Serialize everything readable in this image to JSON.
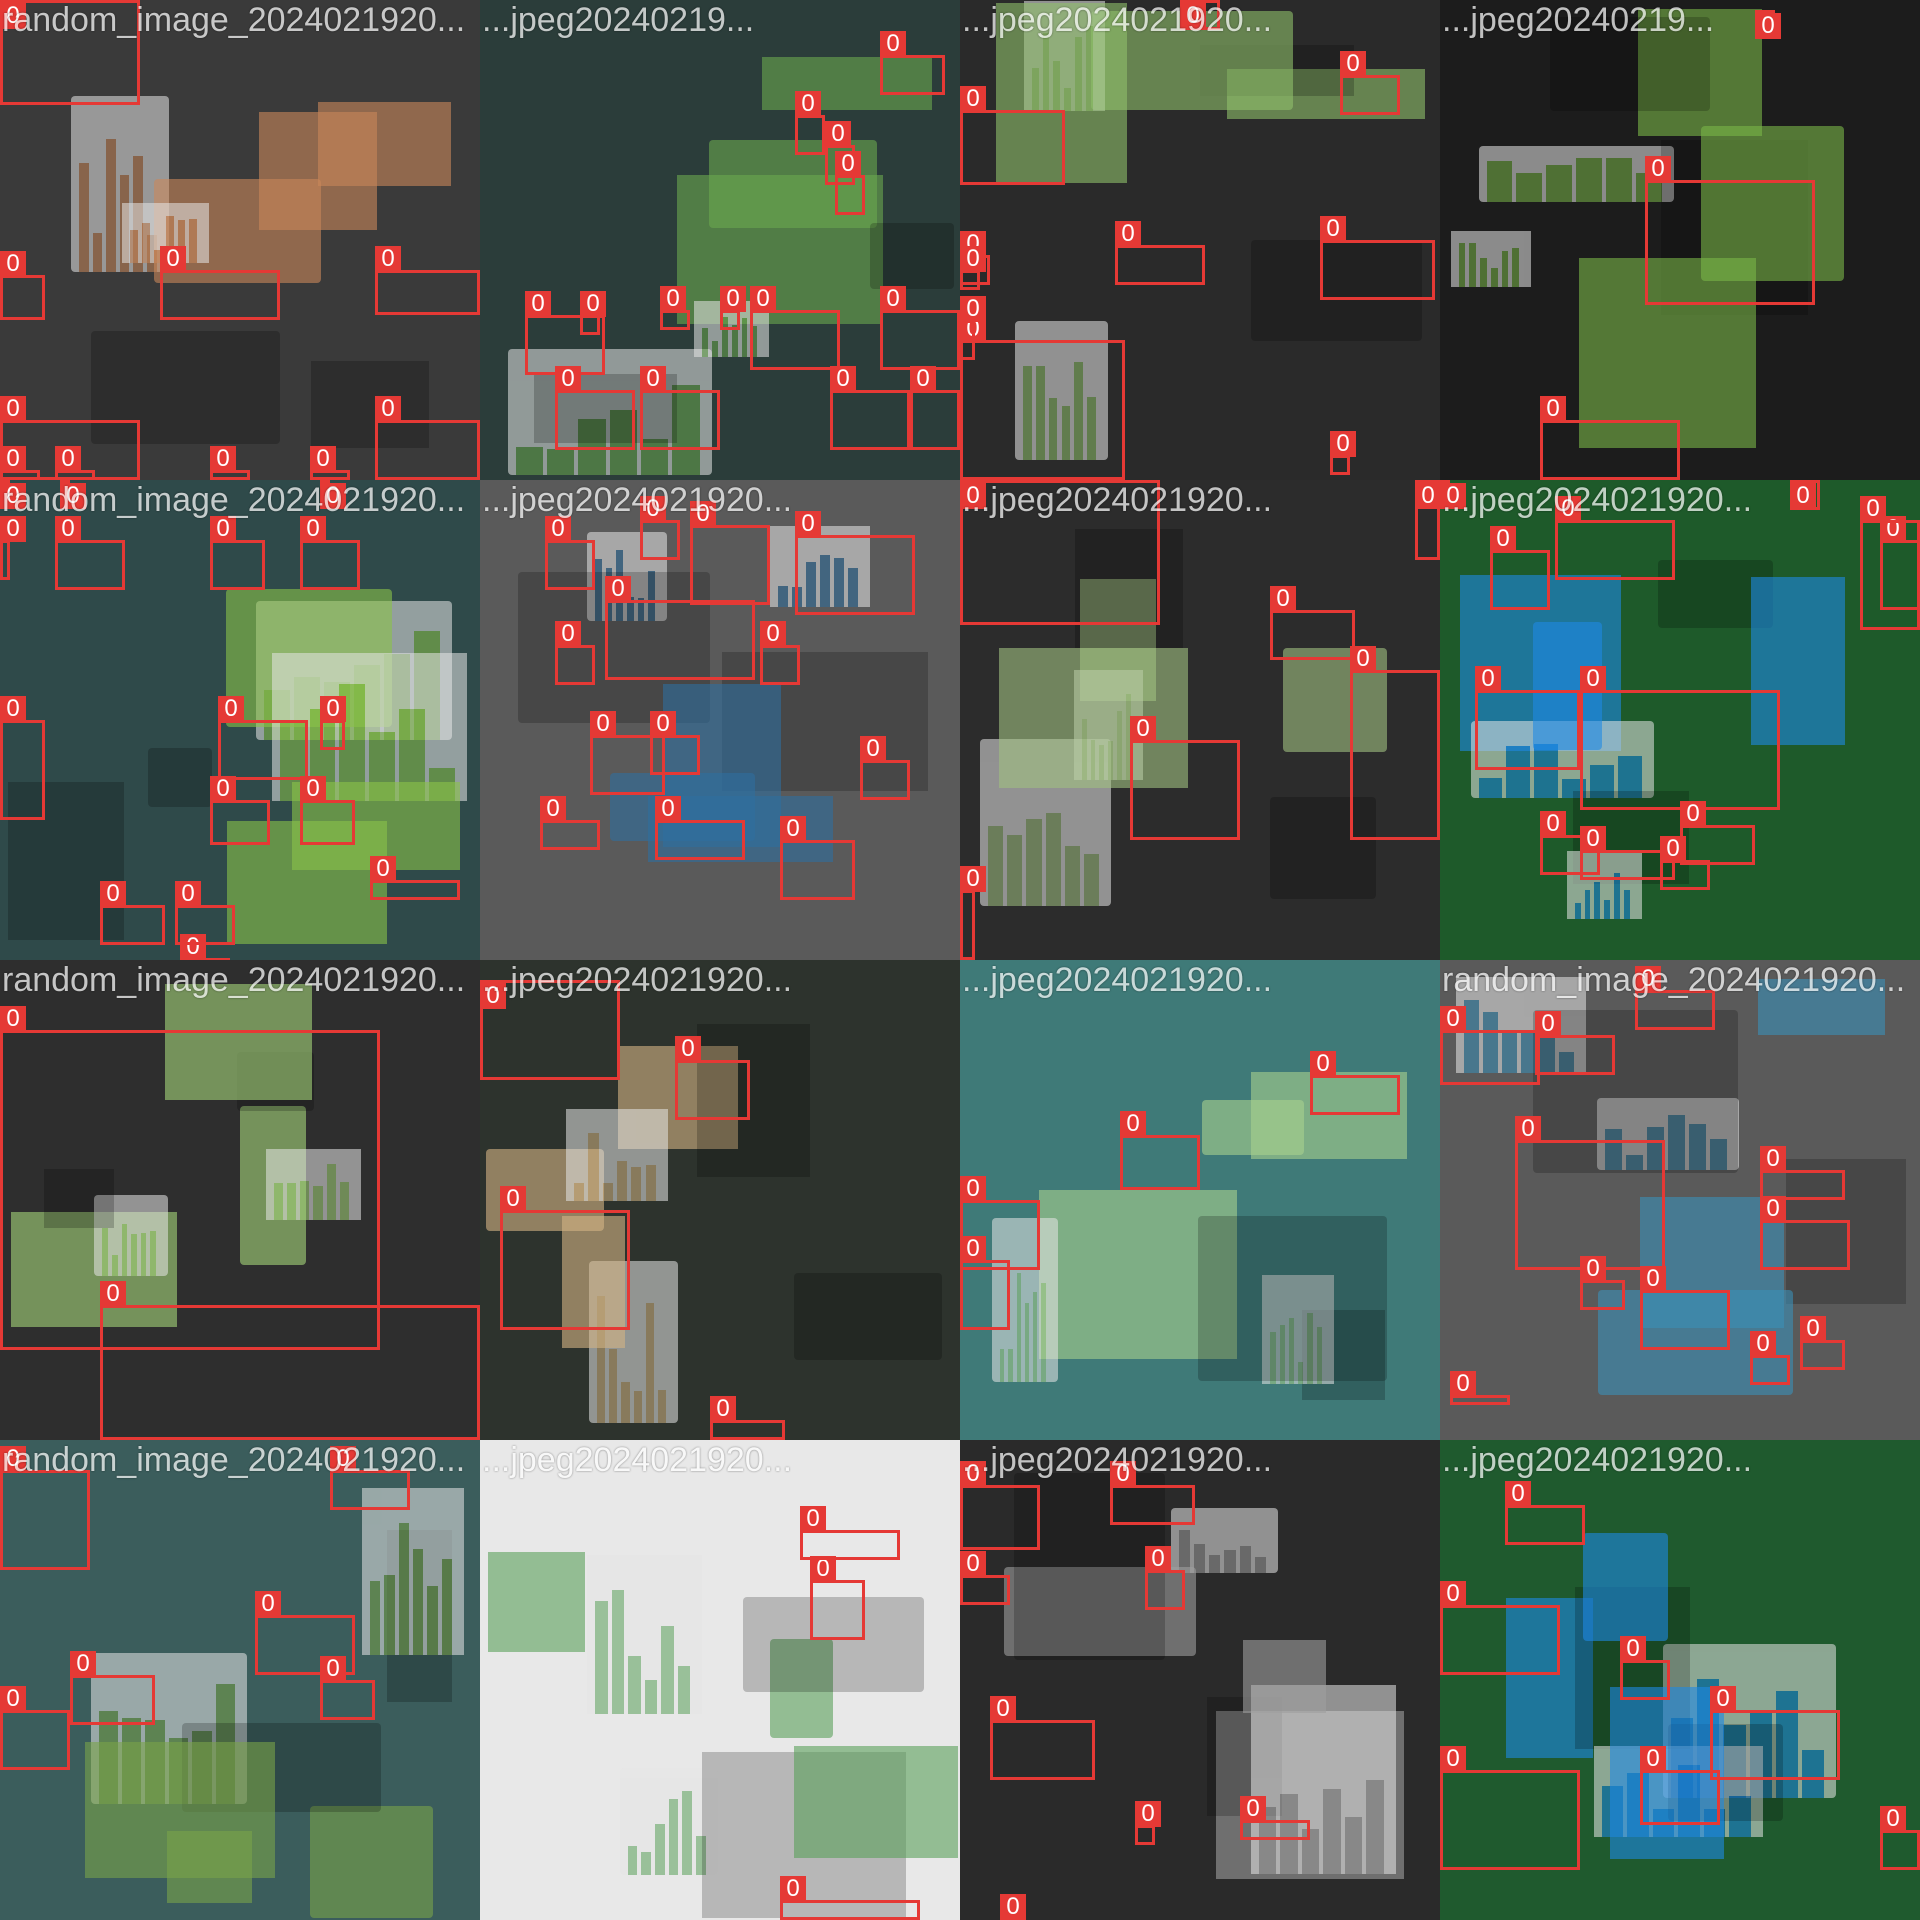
{
  "class_label": "0",
  "box_color": "#e53935",
  "tiles": [
    {
      "caption": "random_image_2024021920...",
      "theme": "#3a3a3a",
      "accent": "#c9875a",
      "boxes": 10
    },
    {
      "caption": "...jpeg20240219...",
      "theme": "#2b3d3a",
      "accent": "#6aa84f",
      "boxes": 14
    },
    {
      "caption": "...jpeg2024021920...",
      "theme": "#2a2a2a",
      "accent": "#8fbf6a",
      "boxes": 10
    },
    {
      "caption": "...jpeg20240219...",
      "theme": "#1c1c1c",
      "accent": "#7ab648",
      "boxes": 3
    },
    {
      "caption": "random_image_2024021920...",
      "theme": "#2f4a4a",
      "accent": "#8bc34a",
      "boxes": 16
    },
    {
      "caption": "...jpeg2024021920...",
      "theme": "#5a5a5a",
      "accent": "#2f6e9e",
      "boxes": 13
    },
    {
      "caption": "...jpeg2024021920...",
      "theme": "#2c2c2c",
      "accent": "#a0c080",
      "boxes": 6
    },
    {
      "caption": "...jpeg2024021920...",
      "theme": "#1e5a2a",
      "accent": "#1e88e5",
      "boxes": 12
    },
    {
      "caption": "random_image_2024021920...",
      "theme": "#2e2e2e",
      "accent": "#a5d67a",
      "boxes": 2
    },
    {
      "caption": "...jpeg2024021920...",
      "theme": "#2d332d",
      "accent": "#d4b483",
      "boxes": 4
    },
    {
      "caption": "...jpeg2024021920...",
      "theme": "#3f7a78",
      "accent": "#a8d08d",
      "boxes": 4
    },
    {
      "caption": "random_image_2024021920...",
      "theme": "#5a5a5a",
      "accent": "#3a8fb7",
      "boxes": 11
    },
    {
      "caption": "random_image_2024021920...",
      "theme": "#3b5d5c",
      "accent": "#7aa34a",
      "boxes": 6
    },
    {
      "caption": "...jpeg2024021920...",
      "theme": "#e8e8e8",
      "accent": "#5aa05a",
      "boxes": 3
    },
    {
      "caption": "...jpeg2024021920...",
      "theme": "#2a2a2a",
      "accent": "#9e9e9e",
      "boxes": 8
    },
    {
      "caption": "...jpeg2024021920...",
      "theme": "#1f5a2e",
      "accent": "#1e88e5",
      "boxes": 7
    }
  ]
}
